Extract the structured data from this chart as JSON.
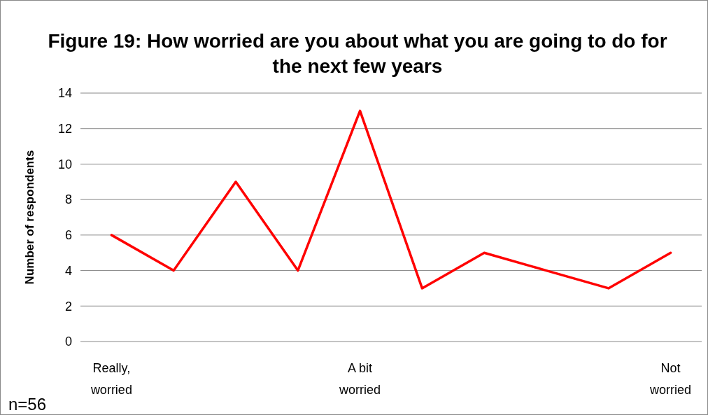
{
  "chart_data": {
    "type": "line",
    "title": "Figure 19: How worried are you about what you are going to do for the next few years",
    "ylabel": "Number of respondents",
    "categories": [
      "Really, worried",
      null,
      null,
      null,
      "A bit worried",
      null,
      null,
      null,
      null,
      "Not worried"
    ],
    "series": [
      {
        "color": "#ff0000",
        "values": [
          6,
          4,
          9,
          4,
          13,
          3,
          5,
          4,
          3,
          5
        ]
      }
    ],
    "ylim": [
      0,
      14
    ],
    "yticks": [
      0,
      2,
      4,
      6,
      8,
      10,
      12,
      14
    ],
    "grid": "y",
    "marker": "none",
    "line_style": "solid",
    "annotations": [
      "n=56"
    ]
  }
}
